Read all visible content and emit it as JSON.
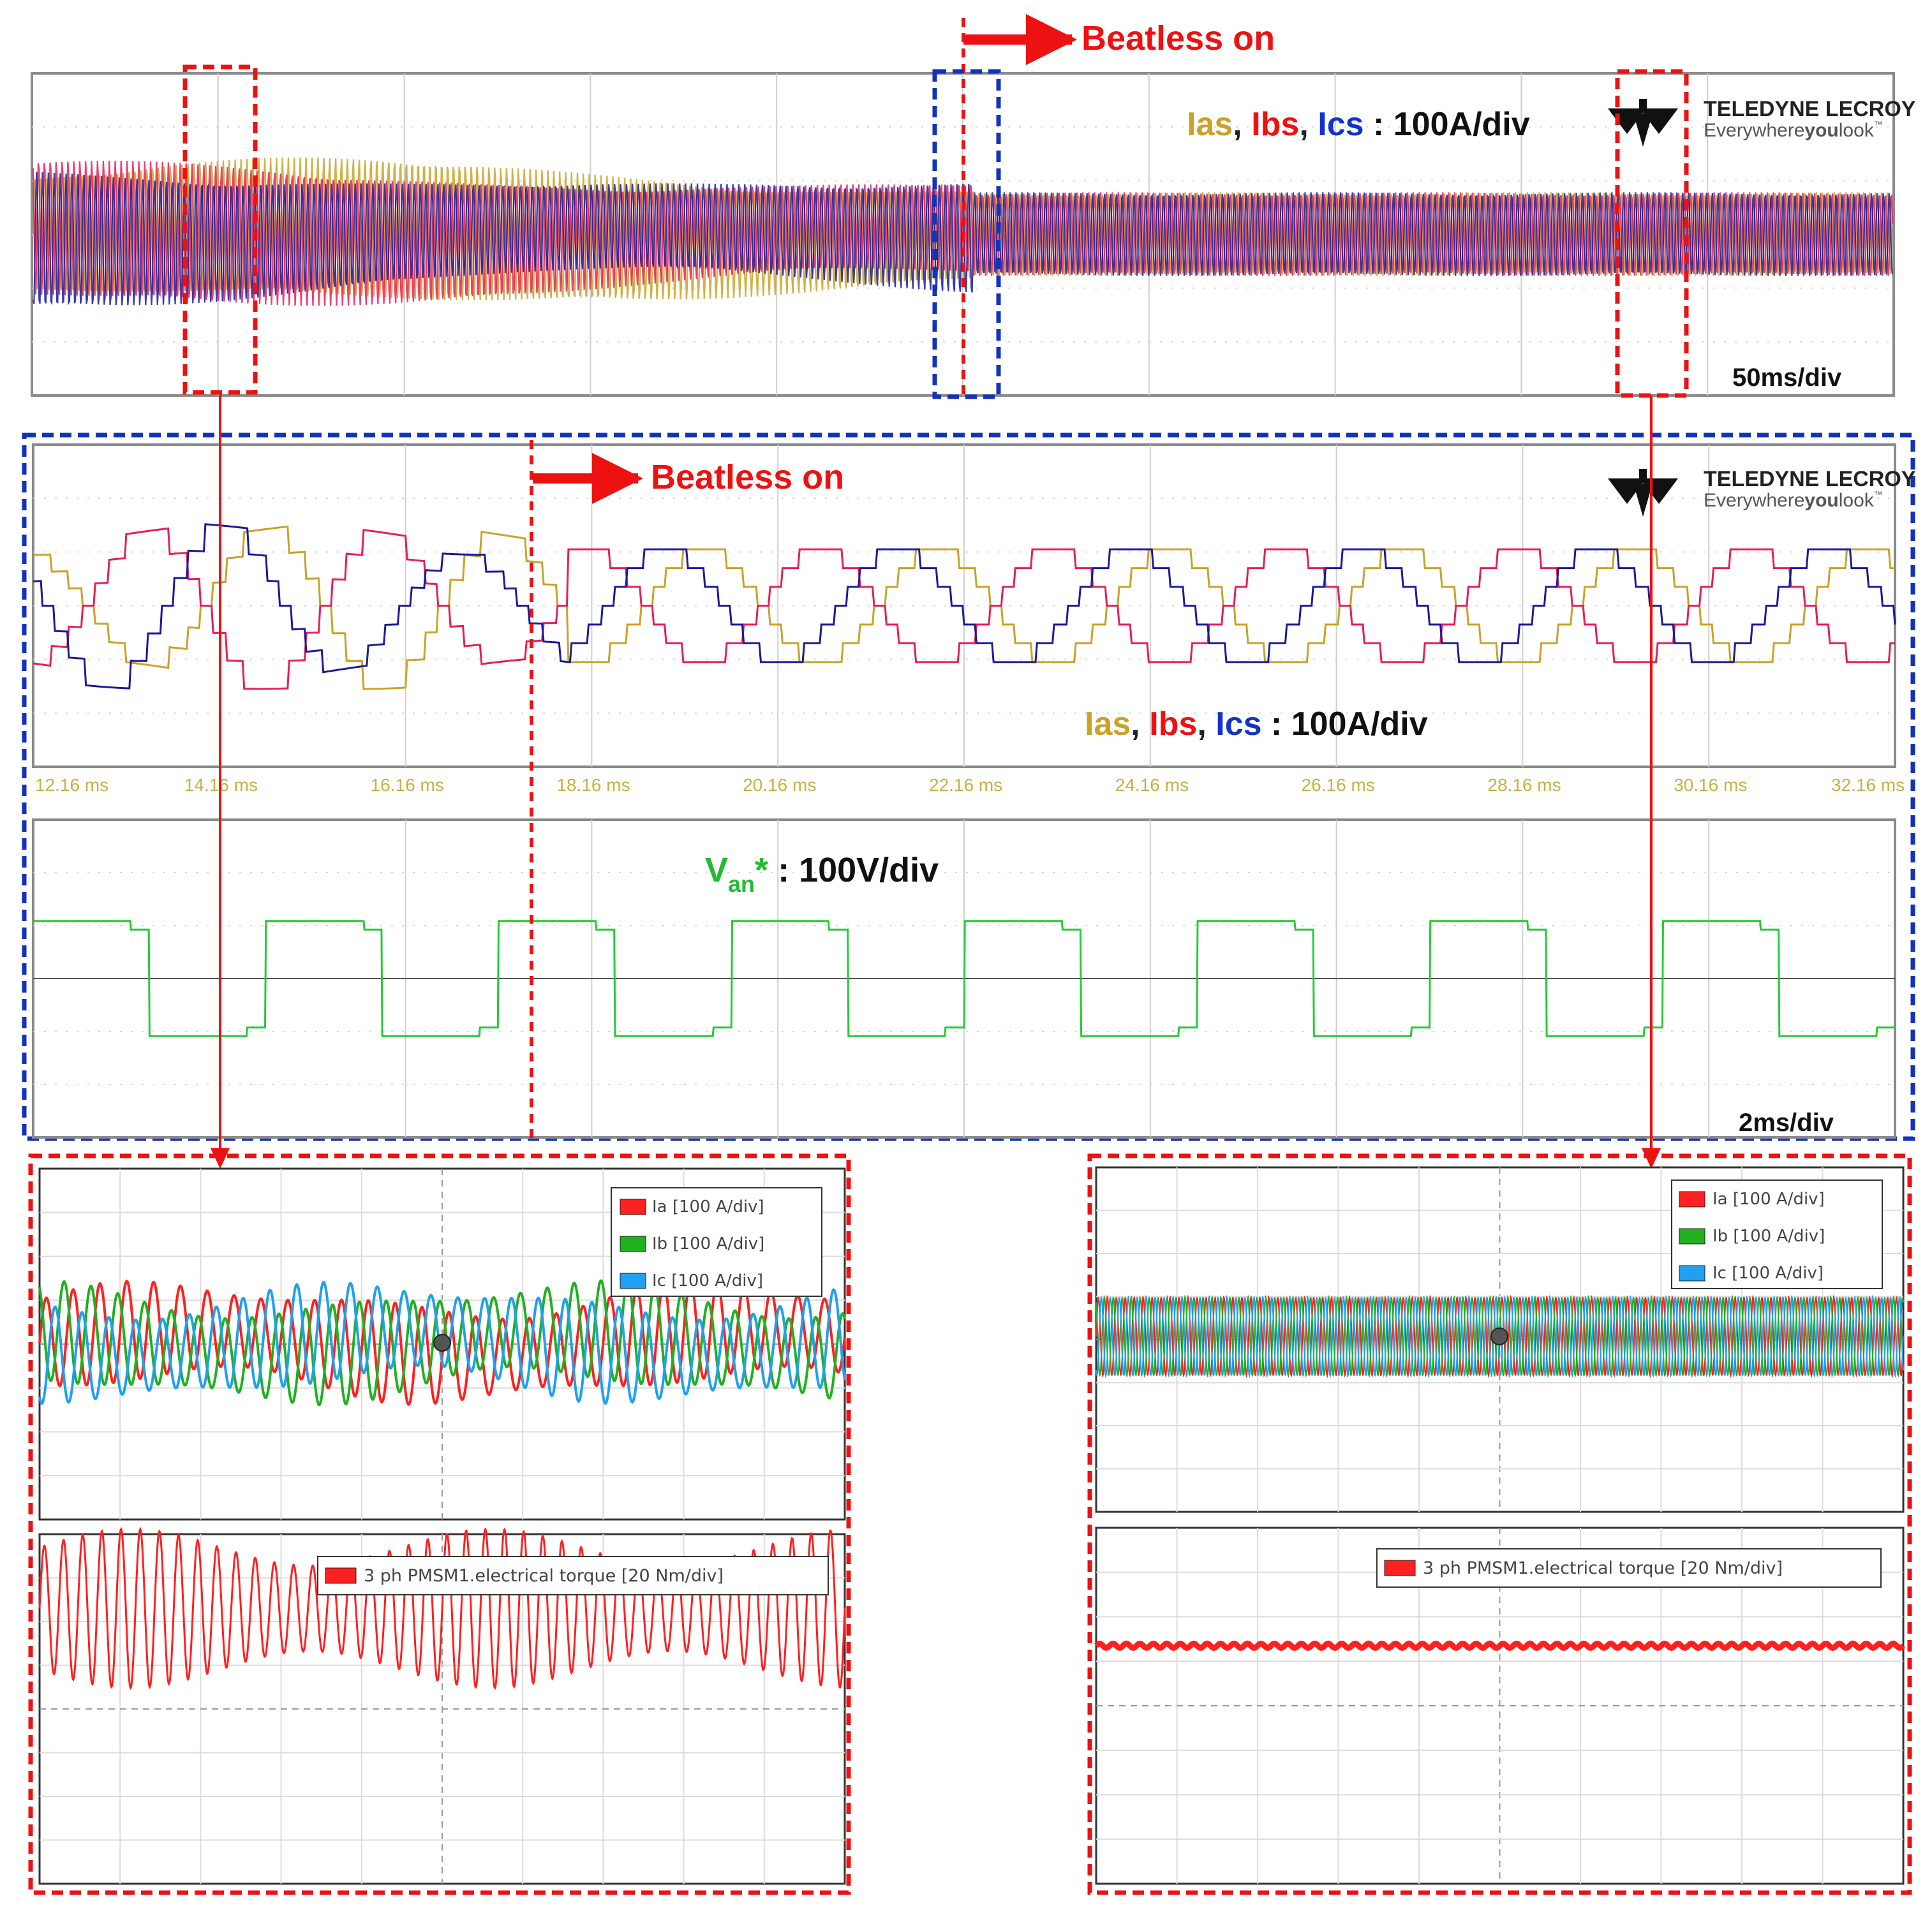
{
  "colors": {
    "ias": "#c9a227",
    "ibs": "#e61e5a",
    "ics": "#1a1a9a",
    "van": "#22cc33",
    "annot_red": "#ee1111",
    "annot_blue": "#1133bb",
    "sim_ia": "#ff2020",
    "sim_ib": "#20b020",
    "sim_ic": "#20a0ee",
    "sim_torque": "#ff2020"
  },
  "annotations": {
    "beatless_top": "Beatless on",
    "beatless_mid": "Beatless on"
  },
  "scope_top": {
    "brand": "TELEDYNE LECROY",
    "tagline_pre": "Everywhere",
    "tagline_bold": "you",
    "tagline_post": "look",
    "trademark": "™",
    "label_ias": "Ias",
    "label_ibs": "Ibs",
    "label_ics": "Ics",
    "sep": ",",
    "scale": ": 100A/div",
    "timebase": "50ms/div"
  },
  "scope_mid": {
    "brand": "TELEDYNE LECROY",
    "tagline_pre": "Everywhere",
    "tagline_bold": "you",
    "tagline_post": "look",
    "trademark": "™",
    "label_ias": "Ias",
    "label_ibs": "Ibs",
    "label_ics": "Ics",
    "sep": ",",
    "scale": ": 100A/div",
    "time_ticks": [
      "12.16 ms",
      "14.16 ms",
      "16.16 ms",
      "18.16 ms",
      "20.16 ms",
      "22.16 ms",
      "24.16 ms",
      "26.16 ms",
      "28.16 ms",
      "30.16 ms",
      "32.16 ms"
    ]
  },
  "scope_volt": {
    "label_v": "V",
    "label_sub": "an",
    "label_star": "*",
    "scale": ": 100V/div",
    "timebase": "2ms/div"
  },
  "sim_left": {
    "legend": [
      "Ia [100 A/div]",
      "Ib [100 A/div]",
      "Ic [100 A/div]"
    ],
    "torque_legend": "3 ph PMSM1.electrical torque [20 Nm/div]"
  },
  "sim_right": {
    "legend": [
      "Ia [100 A/div]",
      "Ib [100 A/div]",
      "Ic [100 A/div]"
    ],
    "torque_legend": "3 ph PMSM1.electrical torque [20 Nm/div]"
  },
  "chart_data": [
    {
      "type": "line",
      "title": "",
      "xlabel": "",
      "ylabel": "",
      "description_units": "Ias, Ibs, Ics : 100A/div; 50ms/div",
      "x_divisions": 10,
      "y_divisions": 6,
      "series": [
        {
          "name": "Ias",
          "amplitude_div_before": 1.0,
          "amplitude_div_after": 0.75
        },
        {
          "name": "Ibs",
          "amplitude_div_before": 1.0,
          "amplitude_div_after": 0.75
        },
        {
          "name": "Ics",
          "amplitude_div_before": 1.0,
          "amplitude_div_after": 0.75
        }
      ],
      "events": [
        {
          "label": "Beatless on",
          "x_div": 5.05
        }
      ],
      "grid": true
    },
    {
      "type": "line",
      "title": "",
      "xlabel": "",
      "ylabel": "",
      "description_units": "Ias, Ibs, Ics : 100A/div",
      "x_unit": "ms",
      "x_range": [
        12.16,
        32.16
      ],
      "x_ticks": [
        12.16,
        14.16,
        16.16,
        18.16,
        20.16,
        22.16,
        24.16,
        26.16,
        28.16,
        30.16,
        32.16
      ],
      "y_range_div": [
        -2.5,
        2.5
      ],
      "series": [
        {
          "name": "Ias",
          "amplitude_div": 1.0,
          "period_ms": 2.5
        },
        {
          "name": "Ibs",
          "amplitude_div": 1.0,
          "period_ms": 2.5
        },
        {
          "name": "Ics",
          "amplitude_div": 1.0,
          "period_ms": 2.5
        }
      ],
      "events": [
        {
          "label": "Beatless on",
          "x_ms": 17.9
        }
      ],
      "grid": true
    },
    {
      "type": "line",
      "title": "",
      "xlabel": "",
      "ylabel": "",
      "description_units": "Van* : 100V/div; 2ms/div",
      "x_unit": "ms",
      "x_range": [
        12.16,
        32.16
      ],
      "series": [
        {
          "name": "Van*",
          "shape": "square",
          "high_div": 0.75,
          "low_div": -0.75,
          "period_ms": 2.5
        }
      ],
      "grid": true
    },
    {
      "type": "line",
      "title": "",
      "xlabel": "",
      "ylabel": "",
      "panel": "simulation-before",
      "series": [
        {
          "name": "Ia [100 A/div]",
          "amplitude_div": 0.75,
          "cycles": 30
        },
        {
          "name": "Ib [100 A/div]",
          "amplitude_div": 0.75,
          "cycles": 30
        },
        {
          "name": "Ic [100 A/div]",
          "amplitude_div": 0.75,
          "cycles": 30
        }
      ],
      "grid": true
    },
    {
      "type": "line",
      "title": "",
      "xlabel": "",
      "ylabel": "",
      "panel": "simulation-before-torque",
      "series": [
        {
          "name": "3 ph PMSM1.electrical torque [20 Nm/div]",
          "mean_div": 2.3,
          "ripple_div": 1.4,
          "cycles": 42
        }
      ],
      "grid": true
    },
    {
      "type": "line",
      "title": "",
      "xlabel": "",
      "ylabel": "",
      "panel": "simulation-after",
      "series": [
        {
          "name": "Ia [100 A/div]",
          "amplitude_div": 0.65,
          "cycles": 90
        },
        {
          "name": "Ib [100 A/div]",
          "amplitude_div": 0.65,
          "cycles": 90
        },
        {
          "name": "Ic [100 A/div]",
          "amplitude_div": 0.65,
          "cycles": 90
        }
      ],
      "grid": true
    },
    {
      "type": "line",
      "title": "",
      "xlabel": "",
      "ylabel": "",
      "panel": "simulation-after-torque",
      "series": [
        {
          "name": "3 ph PMSM1.electrical torque [20 Nm/div]",
          "mean_div": 1.35,
          "ripple_div": 0.05
        }
      ],
      "grid": true
    }
  ]
}
